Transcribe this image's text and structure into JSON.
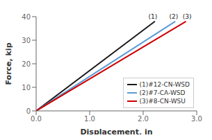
{
  "chart_data": {
    "type": "line",
    "xlabel": "Displacement, in",
    "ylabel": "Force, kip",
    "xlim": [
      0.0,
      3.0
    ],
    "ylim": [
      0,
      40
    ],
    "xticks": [
      {
        "value": 0.0,
        "label": "0.0"
      },
      {
        "value": 1.0,
        "label": "1.0"
      },
      {
        "value": 2.0,
        "label": "2.0"
      },
      {
        "value": 3.0,
        "label": "3.0"
      }
    ],
    "yticks": [
      0,
      10,
      20,
      30,
      40
    ],
    "series": [
      {
        "name": "(1)#12-CN-WSD",
        "color": "#1a1a1a",
        "x": [
          0.0,
          2.22
        ],
        "values": [
          0.0,
          38.0
        ]
      },
      {
        "name": "(2)#7-CA-WSD",
        "color": "#5b9bd5",
        "x": [
          0.0,
          2.6
        ],
        "values": [
          0.0,
          38.0
        ]
      },
      {
        "name": "(3)#8-CN-WSU",
        "color": "#cc0000",
        "x": [
          0.0,
          2.8
        ],
        "values": [
          0.0,
          38.0
        ]
      }
    ],
    "annotations": [
      {
        "text": "(1)",
        "x": 2.18,
        "y": 38.5
      },
      {
        "text": "(2)",
        "x": 2.57,
        "y": 38.5
      },
      {
        "text": "(3)",
        "x": 2.82,
        "y": 38.5
      }
    ],
    "legend": "lower right",
    "grid": false
  }
}
